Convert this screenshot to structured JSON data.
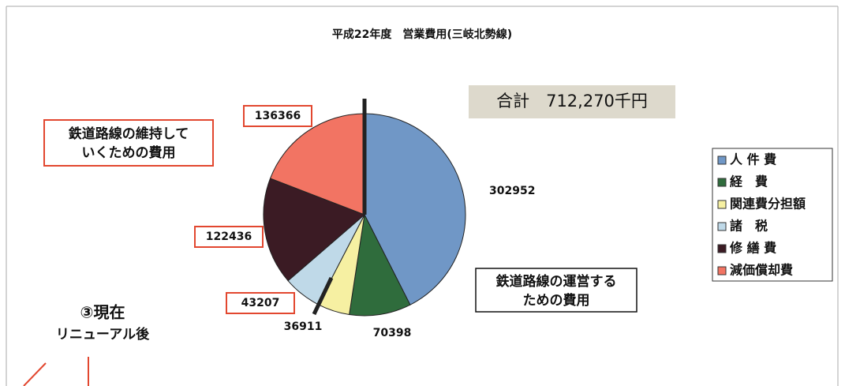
{
  "chart_data": {
    "type": "pie",
    "title": "平成22年度　営業費用(三岐北勢線)",
    "total_label": "合計　712,270千円",
    "categories": [
      "人 件 費",
      "経　費",
      "関連費分担額",
      "諸　税",
      "修 繕 費",
      "減価償却費"
    ],
    "values": [
      302952,
      70398,
      36911,
      43207,
      122436,
      136366
    ],
    "colors": [
      "#7097c6",
      "#2f6c3c",
      "#f6f0a2",
      "#bfd9e8",
      "#3b1b24",
      "#f27463"
    ],
    "legend": "right",
    "annotations": {
      "maintain": [
        "鉄道路線の維持して",
        "いくための費用"
      ],
      "operate": [
        "鉄道路線の運営する",
        "ための費用"
      ],
      "now": "③現在",
      "renewal": "リニューアル後"
    }
  }
}
